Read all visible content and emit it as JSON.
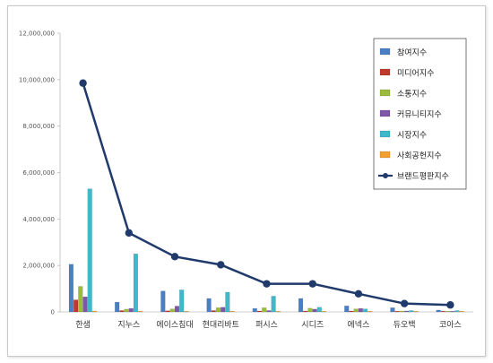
{
  "chart_data": {
    "type": "bar",
    "title": "",
    "xlabel": "",
    "ylabel": "",
    "ylim": [
      0,
      12000000
    ],
    "yticks": [
      0,
      2000000,
      4000000,
      6000000,
      8000000,
      10000000,
      12000000
    ],
    "ytick_labels": [
      "0",
      "2,000,000",
      "4,000,000",
      "6,000,000",
      "8,000,000",
      "10,000,000",
      "12,000,000"
    ],
    "grid": false,
    "legend_position": "right",
    "categories": [
      "한샘",
      "지누스",
      "에이스침대",
      "현대리바트",
      "퍼시스",
      "시디즈",
      "에넥스",
      "듀오백",
      "코아스"
    ],
    "series": [
      {
        "name": "참여지수",
        "kind": "bar",
        "color": "#4a7fc6",
        "values": [
          2050000,
          420000,
          900000,
          580000,
          150000,
          580000,
          260000,
          180000,
          80000
        ]
      },
      {
        "name": "미디어지수",
        "kind": "bar",
        "color": "#c0392b",
        "values": [
          520000,
          60000,
          50000,
          60000,
          40000,
          40000,
          40000,
          30000,
          20000
        ]
      },
      {
        "name": "소통지수",
        "kind": "bar",
        "color": "#9bbb3b",
        "values": [
          1100000,
          120000,
          130000,
          180000,
          180000,
          160000,
          130000,
          40000,
          30000
        ]
      },
      {
        "name": "커뮤니티지수",
        "kind": "bar",
        "color": "#7e57a6",
        "values": [
          650000,
          150000,
          250000,
          200000,
          60000,
          120000,
          150000,
          40000,
          20000
        ]
      },
      {
        "name": "시장지수",
        "kind": "bar",
        "color": "#3fb8cc",
        "values": [
          5300000,
          2500000,
          950000,
          850000,
          680000,
          200000,
          130000,
          60000,
          60000
        ]
      },
      {
        "name": "사회공헌지수",
        "kind": "bar",
        "color": "#f0a030",
        "values": [
          40000,
          20000,
          10000,
          20000,
          10000,
          10000,
          10000,
          10000,
          10000
        ]
      },
      {
        "name": "브랜드평판지수",
        "kind": "line",
        "color": "#1f3a6b",
        "values": [
          9850000,
          3400000,
          2380000,
          2030000,
          1210000,
          1210000,
          780000,
          360000,
          300000
        ]
      }
    ]
  }
}
